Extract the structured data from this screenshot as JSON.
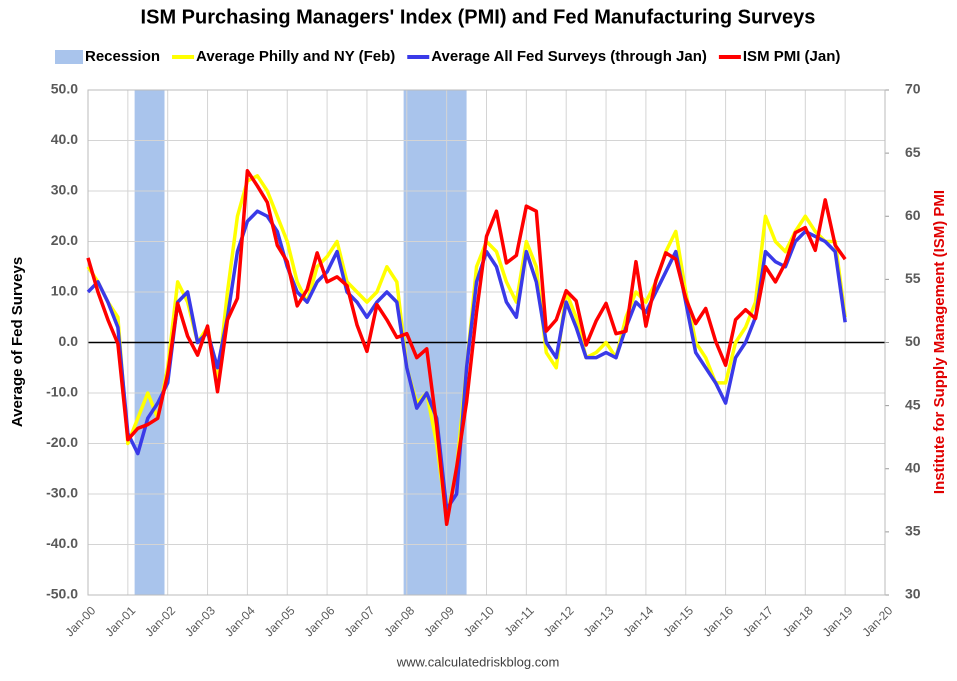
{
  "chart_data": {
    "type": "line",
    "title": "ISM Purchasing Managers' Index (PMI) and Fed Manufacturing Surveys",
    "ylabel": "Average of Fed Surveys",
    "y2label": "Institute for Supply Management (ISM) PMI",
    "source": "www.calculatedriskblog.com",
    "recession_label": "Recession",
    "recession_color": "#a9c4ec",
    "recessions": [
      {
        "start": 2001.17,
        "end": 2001.92
      },
      {
        "start": 2007.92,
        "end": 2009.5
      }
    ],
    "x": [
      2000,
      2000.25,
      2000.5,
      2000.75,
      2001,
      2001.25,
      2001.5,
      2001.75,
      2002,
      2002.25,
      2002.5,
      2002.75,
      2003,
      2003.25,
      2003.5,
      2003.75,
      2004,
      2004.25,
      2004.5,
      2004.75,
      2005,
      2005.25,
      2005.5,
      2005.75,
      2006,
      2006.25,
      2006.5,
      2006.75,
      2007,
      2007.25,
      2007.5,
      2007.75,
      2008,
      2008.25,
      2008.5,
      2008.75,
      2009,
      2009.25,
      2009.5,
      2009.75,
      2010,
      2010.25,
      2010.5,
      2010.75,
      2011,
      2011.25,
      2011.5,
      2011.75,
      2012,
      2012.25,
      2012.5,
      2012.75,
      2013,
      2013.25,
      2013.5,
      2013.75,
      2014,
      2014.25,
      2014.5,
      2014.75,
      2015,
      2015.25,
      2015.5,
      2015.75,
      2016,
      2016.25,
      2016.5,
      2016.75,
      2017,
      2017.25,
      2017.5,
      2017.75,
      2018,
      2018.25,
      2018.5,
      2018.75,
      2019
    ],
    "series": [
      {
        "name": "Average Philly and NY (Feb)",
        "color": "#ffff00",
        "values": [
          15,
          12,
          8,
          5,
          -20,
          -15,
          -10,
          -15,
          -5,
          12,
          8,
          0,
          3,
          -8,
          10,
          25,
          32,
          33,
          30,
          25,
          20,
          12,
          8,
          15,
          17,
          20,
          12,
          10,
          8,
          10,
          15,
          12,
          -5,
          -12,
          -10,
          -20,
          -35,
          -25,
          -5,
          15,
          20,
          18,
          12,
          8,
          20,
          15,
          -2,
          -5,
          10,
          5,
          -3,
          -2,
          0,
          -3,
          5,
          10,
          8,
          12,
          18,
          22,
          10,
          0,
          -3,
          -8,
          -8,
          0,
          3,
          8,
          25,
          20,
          18,
          22,
          25,
          22,
          20,
          20,
          5
        ]
      },
      {
        "name": "Average All Fed Surveys (through Jan)",
        "color": "#3a3ae8",
        "values": [
          10,
          12,
          8,
          3,
          -18,
          -22,
          -15,
          -12,
          -8,
          8,
          10,
          0,
          2,
          -5,
          5,
          18,
          24,
          26,
          25,
          22,
          15,
          10,
          8,
          12,
          14,
          18,
          10,
          8,
          5,
          8,
          10,
          8,
          -5,
          -13,
          -10,
          -15,
          -33,
          -30,
          -5,
          12,
          18,
          15,
          8,
          5,
          18,
          12,
          0,
          -3,
          8,
          3,
          -3,
          -3,
          -2,
          -3,
          3,
          8,
          6,
          10,
          14,
          18,
          8,
          -2,
          -5,
          -8,
          -12,
          -3,
          0,
          5,
          18,
          16,
          15,
          20,
          22,
          21,
          20,
          18,
          4
        ]
      },
      {
        "name": "ISM PMI (Jan)",
        "color": "#ff0000",
        "axis": "y2",
        "values": [
          56.7,
          54,
          51.8,
          49.9,
          42.3,
          43.2,
          43.5,
          44,
          47.5,
          53.1,
          50.5,
          49,
          51.3,
          46.1,
          51.8,
          53.5,
          63.6,
          62.4,
          61.1,
          57.7,
          56.4,
          52.9,
          54.2,
          57.1,
          54.8,
          55.2,
          54.5,
          51.4,
          49.3,
          53,
          51.8,
          50.4,
          50.7,
          48.8,
          49.5,
          43.4,
          35.6,
          40.1,
          45.3,
          52.4,
          58.4,
          60.4,
          56.3,
          56.9,
          60.8,
          60.4,
          50.9,
          51.8,
          54.1,
          53.3,
          49.8,
          51.7,
          53.1,
          50.7,
          50.9,
          56.4,
          51.3,
          54.9,
          57.1,
          56.6,
          53.5,
          51.5,
          52.7,
          50.1,
          48.2,
          51.8,
          52.6,
          51.9,
          56,
          54.8,
          56.3,
          58.7,
          59.1,
          57.3,
          61.3,
          57.7,
          56.6
        ]
      }
    ],
    "xlim": [
      2000,
      2020
    ],
    "xticks": [
      {
        "value": 2000,
        "label": "Jan-00"
      },
      {
        "value": 2001,
        "label": "Jan-01"
      },
      {
        "value": 2002,
        "label": "Jan-02"
      },
      {
        "value": 2003,
        "label": "Jan-03"
      },
      {
        "value": 2004,
        "label": "Jan-04"
      },
      {
        "value": 2005,
        "label": "Jan-05"
      },
      {
        "value": 2006,
        "label": "Jan-06"
      },
      {
        "value": 2007,
        "label": "Jan-07"
      },
      {
        "value": 2008,
        "label": "Jan-08"
      },
      {
        "value": 2009,
        "label": "Jan-09"
      },
      {
        "value": 2010,
        "label": "Jan-10"
      },
      {
        "value": 2011,
        "label": "Jan-11"
      },
      {
        "value": 2012,
        "label": "Jan-12"
      },
      {
        "value": 2013,
        "label": "Jan-13"
      },
      {
        "value": 2014,
        "label": "Jan-14"
      },
      {
        "value": 2015,
        "label": "Jan-15"
      },
      {
        "value": 2016,
        "label": "Jan-16"
      },
      {
        "value": 2017,
        "label": "Jan-17"
      },
      {
        "value": 2018,
        "label": "Jan-18"
      },
      {
        "value": 2019,
        "label": "Jan-19"
      },
      {
        "value": 2020,
        "label": "Jan-20"
      }
    ],
    "ylim": [
      -50,
      50
    ],
    "yticks": [
      {
        "value": 50,
        "label": "50.0"
      },
      {
        "value": 40,
        "label": "40.0"
      },
      {
        "value": 30,
        "label": "30.0"
      },
      {
        "value": 20,
        "label": "20.0"
      },
      {
        "value": 10,
        "label": "10.0"
      },
      {
        "value": 0,
        "label": "0.0"
      },
      {
        "value": -10,
        "label": "-10.0"
      },
      {
        "value": -20,
        "label": "-20.0"
      },
      {
        "value": -30,
        "label": "-30.0"
      },
      {
        "value": -40,
        "label": "-40.0"
      },
      {
        "value": -50,
        "label": "-50.0"
      }
    ],
    "y2lim": [
      30,
      70
    ],
    "y2ticks": [
      30,
      35,
      40,
      45,
      50,
      55,
      60,
      65,
      70
    ],
    "grid": true
  }
}
